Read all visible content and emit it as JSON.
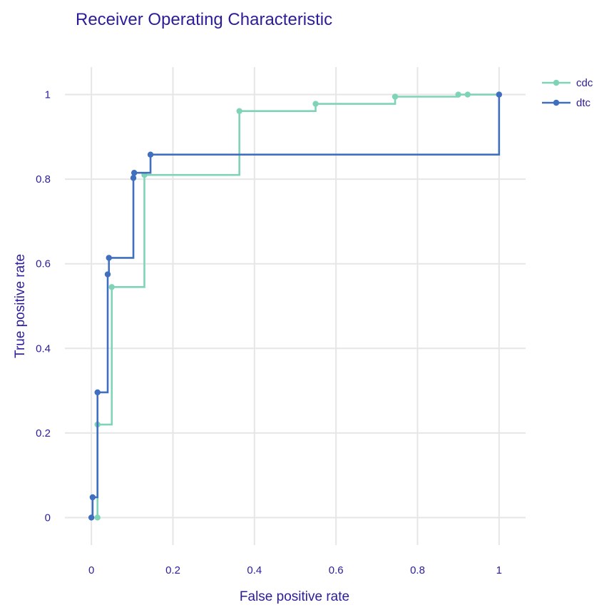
{
  "chart_data": {
    "type": "line",
    "line_shape": "step",
    "title": "Receiver Operating Characteristic",
    "xlabel": "False positive rate",
    "ylabel": "True positive rate",
    "xlim": [
      -0.065,
      1.065
    ],
    "ylim": [
      -0.065,
      1.065
    ],
    "xticks": [
      0,
      0.2,
      0.4,
      0.6,
      0.8,
      1
    ],
    "yticks": [
      0,
      0.2,
      0.4,
      0.6,
      0.8,
      1
    ],
    "xtick_labels": [
      "0",
      "0.2",
      "0.4",
      "0.6",
      "0.8",
      "1"
    ],
    "ytick_labels": [
      "0",
      "0.2",
      "0.4",
      "0.6",
      "0.8",
      "1"
    ],
    "grid": true,
    "legend_position": "top-right",
    "series": [
      {
        "name": "cdc",
        "color": "#7fd4b7",
        "x": [
          0.015,
          0.015,
          0.05,
          0.13,
          0.363,
          0.55,
          0.745,
          0.9,
          0.923,
          1
        ],
        "y": [
          0,
          0.22,
          0.545,
          0.81,
          0.961,
          0.978,
          0.995,
          1,
          1,
          1
        ]
      },
      {
        "name": "dtc",
        "color": "#3f6fbe",
        "x": [
          0,
          0.003,
          0.015,
          0.04,
          0.043,
          0.103,
          0.105,
          0.145,
          1
        ],
        "y": [
          0,
          0.048,
          0.296,
          0.575,
          0.614,
          0.803,
          0.815,
          0.858,
          1
        ]
      }
    ]
  }
}
